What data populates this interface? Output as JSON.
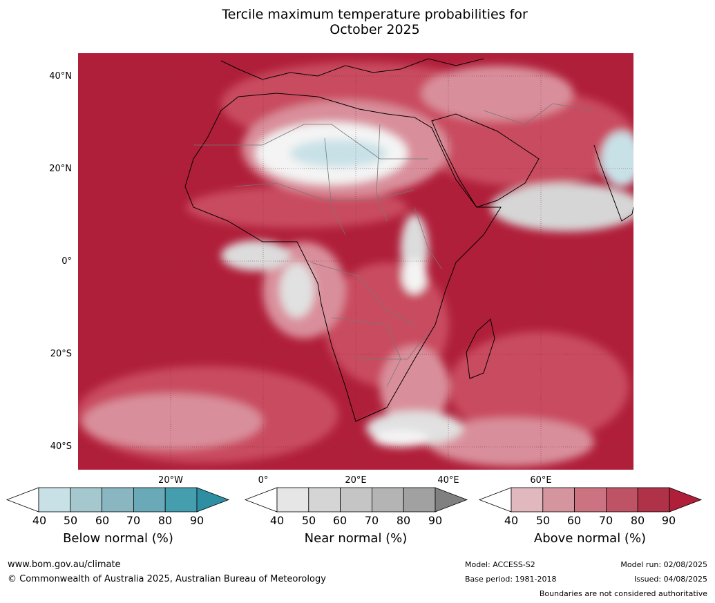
{
  "title_line1": "Tercile maximum temperature probabilities for",
  "title_line2": "October 2025",
  "axes": {
    "lat_ticks": [
      "40°N",
      "20°N",
      "0°",
      "20°S",
      "40°S"
    ],
    "lon_ticks": [
      "20°W",
      "0°",
      "20°E",
      "40°E",
      "60°E"
    ]
  },
  "colorbars": [
    {
      "label": "Below normal (%)",
      "ticks": [
        "40",
        "50",
        "60",
        "70",
        "80",
        "90"
      ],
      "colors": [
        "#ffffff",
        "#c8e1e7",
        "#a5c7ce",
        "#89b6c1",
        "#6aa9b7",
        "#459eae",
        "#2e8ea2"
      ]
    },
    {
      "label": "Near normal (%)",
      "ticks": [
        "40",
        "50",
        "60",
        "70",
        "80",
        "90"
      ],
      "colors": [
        "#ffffff",
        "#e6e6e6",
        "#d5d5d5",
        "#c5c5c5",
        "#b4b4b4",
        "#a1a1a1",
        "#808080"
      ]
    },
    {
      "label": "Above normal (%)",
      "ticks": [
        "40",
        "50",
        "60",
        "70",
        "80",
        "90"
      ],
      "colors": [
        "#ffffff",
        "#e2b8bf",
        "#d4959f",
        "#cb7380",
        "#be5365",
        "#b03249",
        "#b01f3a"
      ]
    }
  ],
  "footer": {
    "url": "www.bom.gov.au/climate",
    "copyright": "© Commonwealth of Australia 2025, Australian Bureau of Meteorology",
    "model": "Model: ACCESS-S2",
    "base_period": "Base period: 1981-2018",
    "model_run": "Model run: 02/08/2025",
    "issued": "Issued: 04/08/2025",
    "disclaimer": "Boundaries are not considered authoritative"
  },
  "colors": {
    "ocean_high": "#b01f3a",
    "mid_red": "#c94b61",
    "light_red": "#d98f9b",
    "pale": "#e8c4c9",
    "near_grey": "#d6d6d6",
    "below_blue": "#c8e1e7"
  }
}
